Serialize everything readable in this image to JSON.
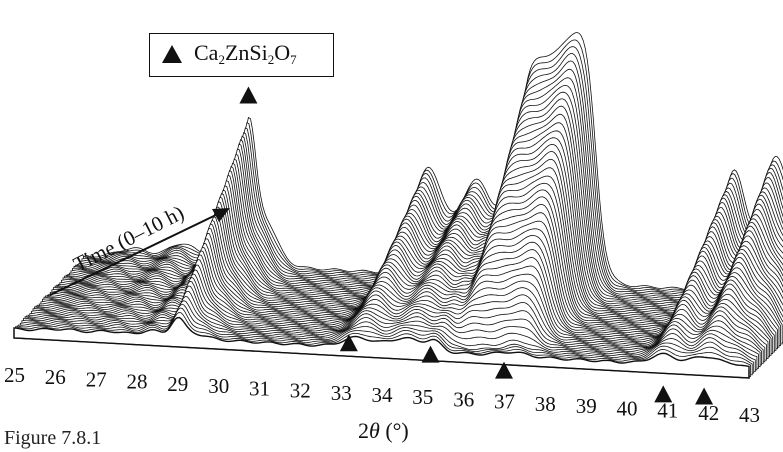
{
  "chart_data": {
    "type": "line",
    "subtype": "waterfall",
    "xlabel_prefix": "2",
    "xlabel_theta": "θ",
    "xlabel_suffix": " (°)",
    "x_ticks": [
      25,
      26,
      27,
      28,
      29,
      30,
      31,
      32,
      33,
      34,
      35,
      36,
      37,
      38,
      39,
      40,
      41,
      42,
      43
    ],
    "xlim": [
      25,
      43
    ],
    "time_label": "Time (0–10 h)",
    "time_range_h": [
      0,
      10
    ],
    "n_scans": 46,
    "peak_markers_2theta": [
      29.0,
      33.2,
      35.2,
      37.0,
      40.9,
      41.9
    ],
    "base_peak_markers_2theta": [
      33.2,
      35.2,
      37.0,
      40.9,
      41.9
    ],
    "top_peak_marker_2theta": 29.0,
    "legend": {
      "formula": [
        {
          "t": "Ca"
        },
        {
          "t": "2",
          "sub": true
        },
        {
          "t": "ZnSi"
        },
        {
          "t": "2",
          "sub": true
        },
        {
          "t": "O"
        },
        {
          "t": "7",
          "sub": true
        }
      ]
    },
    "caption": "Figure 7.8.1",
    "grid": false,
    "legend_position": "top-left"
  }
}
